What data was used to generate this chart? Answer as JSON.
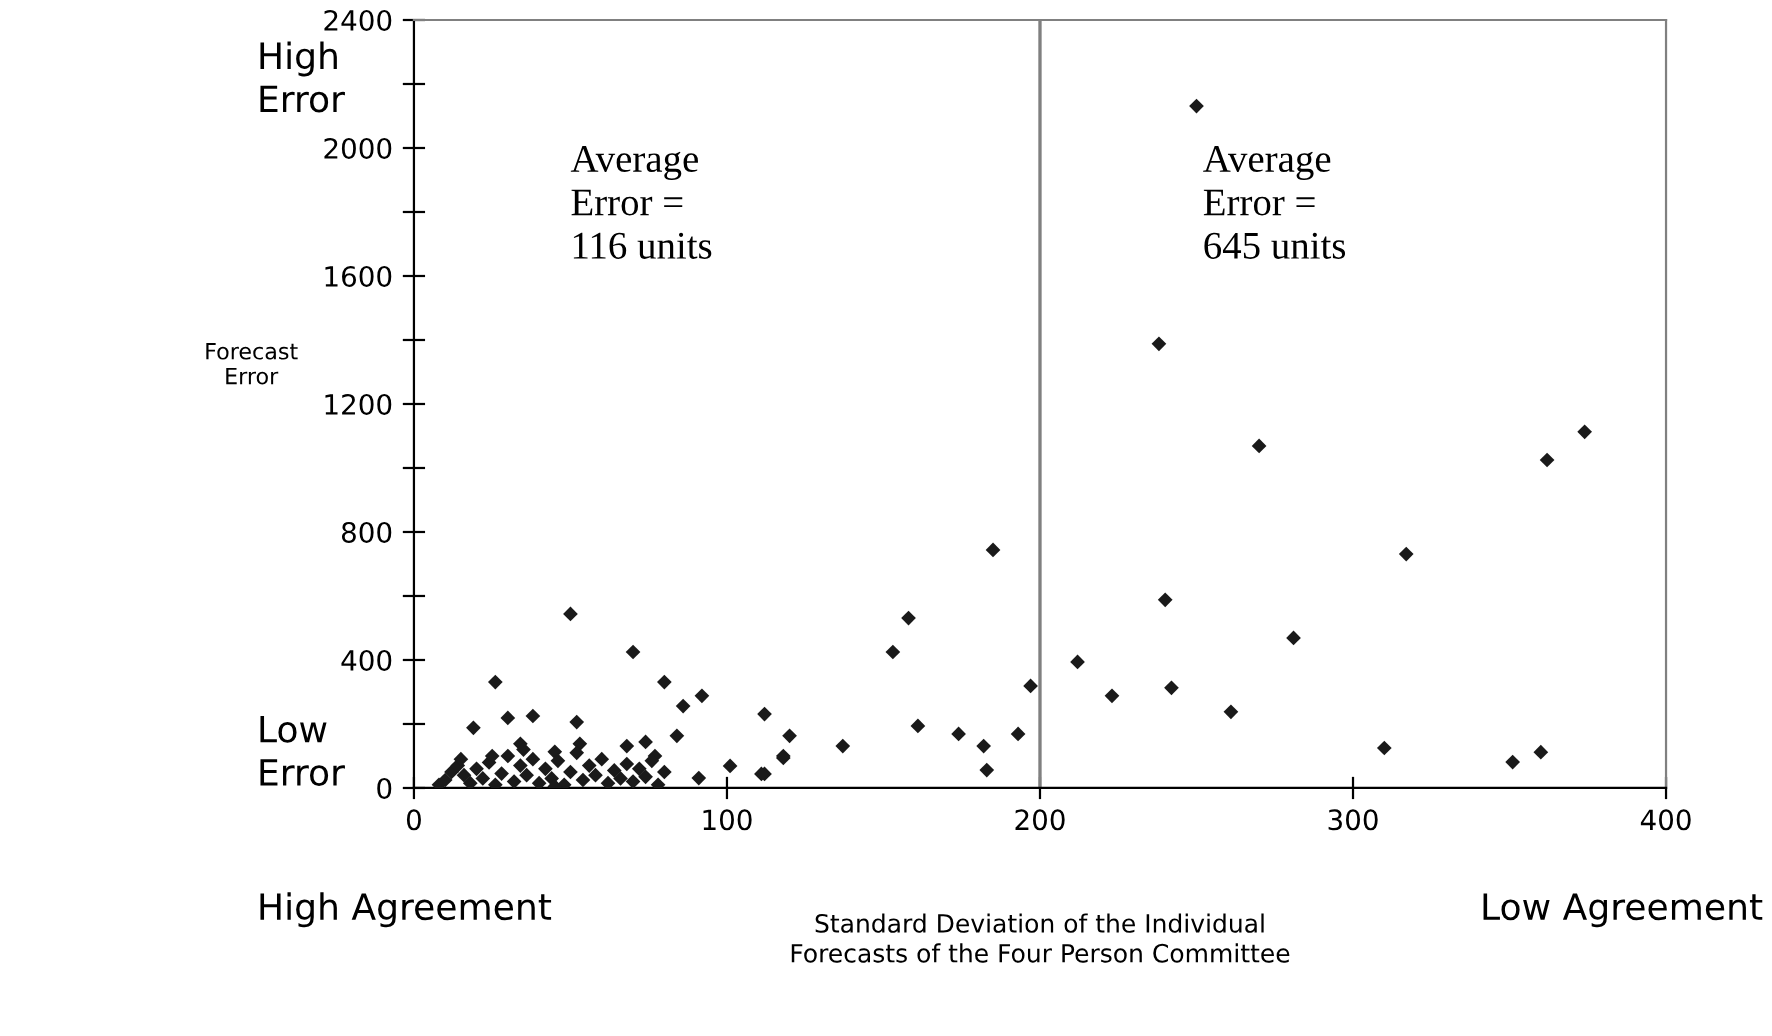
{
  "chart_data": {
    "type": "scatter",
    "xlabel": "Standard Deviation of the Individual\nForecasts of the Four Person Committee",
    "ylabel": "Forecast\nError",
    "annotations": [
      "High\nError",
      "Low\nError",
      "High Agreement",
      "Low Agreement",
      "Average\nError =\n116 units",
      "Average\nError =\n645 units"
    ],
    "series": [
      {
        "color": "#1a1a1a",
        "x": [
          250,
          238,
          270,
          362,
          374,
          317,
          240,
          281,
          242,
          261,
          310,
          351,
          360,
          185,
          158,
          153,
          212,
          223,
          197,
          161,
          174,
          182,
          183,
          193,
          137,
          112,
          120,
          118,
          112,
          50,
          70,
          26,
          80,
          86,
          92,
          19,
          30,
          38,
          52,
          84,
          34,
          53,
          68,
          74,
          45,
          77,
          101,
          118,
          111,
          91,
          8,
          10,
          12,
          14,
          16,
          18,
          20,
          22,
          24,
          26,
          28,
          30,
          32,
          34,
          35,
          36,
          38,
          40,
          42,
          44,
          46,
          48,
          50,
          52,
          54,
          56,
          58,
          60,
          62,
          64,
          66,
          68,
          70,
          72,
          74,
          76,
          78,
          80,
          45,
          25,
          15
        ],
        "values": [
          2131,
          1388,
          1069,
          1025,
          1113,
          731,
          588,
          469,
          313,
          238,
          125,
          81,
          112,
          744,
          531,
          425,
          394,
          288,
          319,
          194,
          169,
          131,
          56,
          169,
          131,
          231,
          163,
          94,
          44,
          544,
          425,
          331,
          331,
          256,
          288,
          188,
          219,
          225,
          206,
          163,
          138,
          138,
          131,
          144,
          113,
          100,
          69,
          100,
          44,
          31,
          10,
          25,
          50,
          70,
          40,
          15,
          60,
          30,
          80,
          10,
          45,
          100,
          20,
          70,
          120,
          40,
          90,
          15,
          60,
          30,
          85,
          10,
          50,
          110,
          25,
          70,
          40,
          90,
          15,
          55,
          30,
          75,
          20,
          60,
          35,
          85,
          10,
          50,
          5,
          100,
          90
        ]
      }
    ],
    "xlim": [
      0,
      400
    ],
    "xticks": [
      0,
      100,
      200,
      300,
      400
    ],
    "ylim": [
      0,
      2400
    ],
    "yticks": [
      0,
      {
        "value": 200,
        "label": null
      },
      400,
      {
        "value": 600,
        "label": null
      },
      800,
      {
        "value": 1000,
        "label": null
      },
      1200,
      {
        "value": 1400,
        "label": null
      },
      1600,
      {
        "value": 1800,
        "label": null
      },
      2000,
      {
        "value": 2200,
        "label": null
      },
      2400
    ],
    "ref_lines": [
      {
        "axis": "x",
        "value": 200,
        "color": "#808080"
      }
    ],
    "grid": false,
    "marker": "diamond",
    "legend": false
  }
}
